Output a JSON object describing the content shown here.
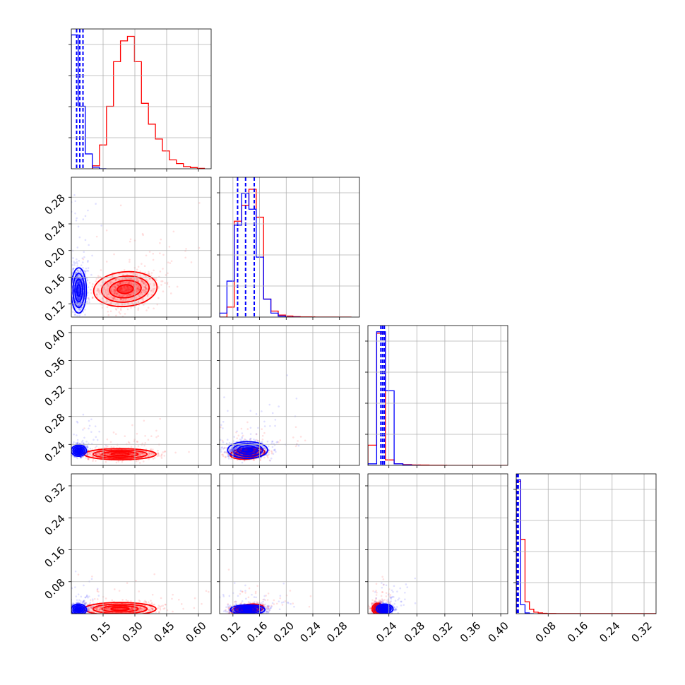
{
  "chart_data": {
    "type": "corner",
    "grid": true,
    "series": [
      {
        "color": "#0000ff"
      },
      {
        "color": "#ff0000"
      }
    ],
    "parameters": [
      {
        "index": 0,
        "range": [
          0.0,
          0.66
        ],
        "ticks": [
          0.15,
          0.3,
          0.45,
          0.6
        ],
        "tick_labels": [
          "0.15",
          "0.30",
          "0.45",
          "0.60"
        ]
      },
      {
        "index": 1,
        "range": [
          0.1,
          0.31
        ],
        "ticks": [
          0.12,
          0.16,
          0.2,
          0.24,
          0.28
        ],
        "tick_labels": [
          "0.12",
          "0.16",
          "0.20",
          "0.24",
          "0.28"
        ]
      },
      {
        "index": 2,
        "range": [
          0.21,
          0.41
        ],
        "ticks": [
          0.24,
          0.28,
          0.32,
          0.36,
          0.4
        ],
        "tick_labels": [
          "0.24",
          "0.28",
          "0.32",
          "0.36",
          "0.40"
        ]
      },
      {
        "index": 3,
        "range": [
          0.0,
          0.35
        ],
        "ticks": [
          0.08,
          0.16,
          0.24,
          0.32
        ],
        "tick_labels": [
          "0.08",
          "0.16",
          "0.24",
          "0.32"
        ]
      }
    ],
    "marginals": [
      {
        "param": 0,
        "quantile_lines_blue": [
          0.025,
          0.04,
          0.055
        ],
        "hist_blue": {
          "edges": [
            0.0,
            0.033,
            0.066,
            0.099,
            0.132,
            0.165
          ],
          "counts": [
            9.0,
            4.2,
            1.0,
            0.1,
            0.0
          ]
        },
        "hist_red": {
          "edges": [
            0.1,
            0.133,
            0.166,
            0.199,
            0.232,
            0.265,
            0.298,
            0.331,
            0.364,
            0.397,
            0.43,
            0.463,
            0.496,
            0.529,
            0.562,
            0.595,
            0.628
          ],
          "counts": [
            0.2,
            1.6,
            4.2,
            7.2,
            8.6,
            8.9,
            7.2,
            4.4,
            3.0,
            2.0,
            1.2,
            0.6,
            0.35,
            0.15,
            0.08,
            0.03
          ]
        },
        "ymax": 9.4
      },
      {
        "param": 1,
        "quantile_lines_blue": [
          0.127,
          0.139,
          0.152
        ],
        "hist_blue": {
          "edges": [
            0.1,
            0.111,
            0.122,
            0.133,
            0.144,
            0.155,
            0.166,
            0.177,
            0.188,
            0.199,
            0.21,
            0.221
          ],
          "counts": [
            0.2,
            1.8,
            4.6,
            6.2,
            5.4,
            3.0,
            0.9,
            0.2,
            0.05,
            0.0,
            0.0
          ]
        },
        "hist_red": {
          "edges": [
            0.1,
            0.111,
            0.122,
            0.133,
            0.144,
            0.155,
            0.166,
            0.177,
            0.188,
            0.199,
            0.21,
            0.221,
            0.232,
            0.243,
            0.254,
            0.265,
            0.276,
            0.287,
            0.298
          ],
          "counts": [
            0.0,
            0.5,
            4.8,
            5.6,
            6.4,
            5.0,
            0.9,
            0.3,
            0.1,
            0.05,
            0.02,
            0.01,
            0.01,
            0.0,
            0.0,
            0.0,
            0.0,
            0.0
          ]
        },
        "ymax": 7.0
      },
      {
        "param": 2,
        "quantile_lines_blue": [
          0.2285,
          0.231,
          0.2335
        ],
        "hist_blue": {
          "edges": [
            0.21,
            0.2225,
            0.235,
            0.2475,
            0.26,
            0.2725,
            0.285
          ],
          "counts": [
            0.1,
            8.6,
            4.8,
            0.1,
            0.03,
            0.0
          ]
        },
        "hist_red": {
          "edges": [
            0.21,
            0.2225,
            0.235,
            0.2475,
            0.26,
            0.2725,
            0.285,
            0.2975,
            0.31,
            0.3225,
            0.335,
            0.3475,
            0.36,
            0.3725,
            0.385,
            0.3975,
            0.41
          ],
          "counts": [
            1.3,
            8.5,
            0.35,
            0.1,
            0.05,
            0.03,
            0.02,
            0.01,
            0.01,
            0.0,
            0.0,
            0.0,
            0.0,
            0.0,
            0.0,
            0.0
          ]
        },
        "ymax": 9.0
      },
      {
        "param": 3,
        "quantile_lines_blue": [
          0.001,
          0.003,
          0.005
        ],
        "hist_blue": {
          "edges": [
            0.0,
            0.011,
            0.022,
            0.033,
            0.044
          ],
          "counts": [
            9.0,
            0.6,
            0.05,
            0.0
          ]
        },
        "hist_red": {
          "edges": [
            0.0,
            0.011,
            0.022,
            0.033,
            0.044,
            0.055,
            0.066,
            0.077,
            0.088,
            0.099,
            0.35
          ],
          "counts": [
            8.9,
            5.0,
            0.8,
            0.3,
            0.1,
            0.05,
            0.02,
            0.01,
            0.01,
            0.005
          ]
        },
        "ymax": 9.4
      }
    ],
    "joints": [
      {
        "x": 0,
        "y": 1,
        "blue": {
          "cx": 0.035,
          "cy": 0.14,
          "sx": 0.018,
          "sy": 0.017,
          "rho": 0.0
        },
        "red": {
          "cx": 0.255,
          "cy": 0.142,
          "sx": 0.075,
          "sy": 0.013,
          "rho": 0.2
        }
      },
      {
        "x": 0,
        "y": 2,
        "blue": {
          "cx": 0.035,
          "cy": 0.231,
          "sx": 0.018,
          "sy": 0.004,
          "rho": 0.0
        },
        "red": {
          "cx": 0.23,
          "cy": 0.226,
          "sx": 0.085,
          "sy": 0.004,
          "rho": 0.0
        }
      },
      {
        "x": 0,
        "y": 3,
        "blue": {
          "cx": 0.035,
          "cy": 0.01,
          "sx": 0.018,
          "sy": 0.007,
          "rho": 0.0
        },
        "red": {
          "cx": 0.23,
          "cy": 0.012,
          "sx": 0.085,
          "sy": 0.008,
          "rho": 0.0
        }
      },
      {
        "x": 1,
        "y": 2,
        "blue": {
          "cx": 0.142,
          "cy": 0.232,
          "sx": 0.015,
          "sy": 0.006,
          "rho": 0.0
        },
        "red": {
          "cx": 0.142,
          "cy": 0.227,
          "sx": 0.013,
          "sy": 0.004,
          "rho": 0.2
        }
      },
      {
        "x": 1,
        "y": 3,
        "blue": {
          "cx": 0.142,
          "cy": 0.01,
          "sx": 0.013,
          "sy": 0.006,
          "rho": 0.0
        },
        "red": {
          "cx": 0.142,
          "cy": 0.011,
          "sx": 0.012,
          "sy": 0.006,
          "rho": 0.3
        }
      },
      {
        "x": 2,
        "y": 3,
        "blue": {
          "cx": 0.234,
          "cy": 0.012,
          "sx": 0.006,
          "sy": 0.006,
          "rho": 0.0
        },
        "red": {
          "cx": 0.224,
          "cy": 0.012,
          "sx": 0.004,
          "sy": 0.007,
          "rho": 0.0
        }
      }
    ]
  }
}
